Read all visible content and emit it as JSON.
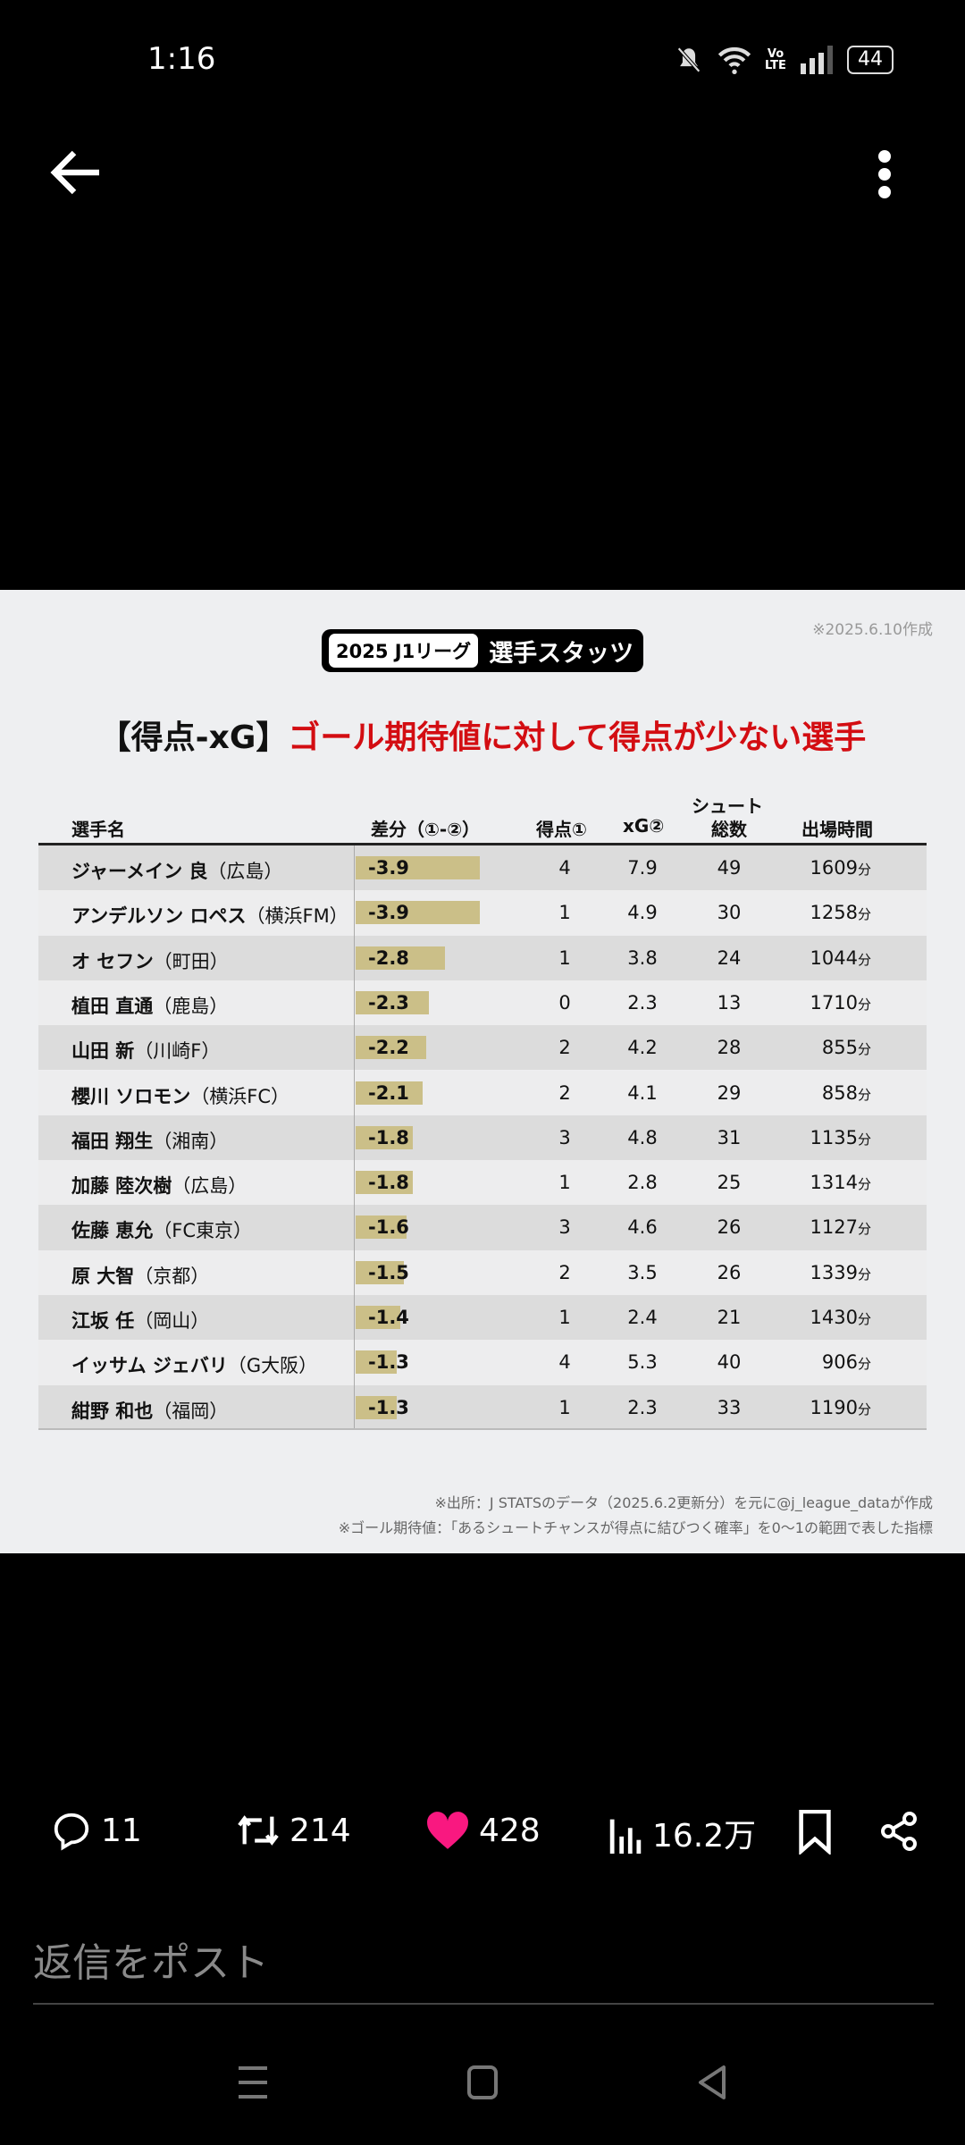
{
  "status_bar": {
    "time": "1:16",
    "battery": "44",
    "network": "Vo LTE"
  },
  "image": {
    "date_note": "※2025.6.10作成",
    "badge_left": "2025 J1リーグ",
    "badge_right": "選手スタッツ",
    "title_black": "【得点-xG】",
    "title_red": "ゴール期待値に対して得点が少ない選手",
    "headers": {
      "name": "選手名",
      "diff": "差分（①-②）",
      "goals": "得点①",
      "xg": "xG②",
      "shots_1": "シュート",
      "shots_2": "総数",
      "minutes": "出場時間"
    },
    "minute_unit": "分",
    "rows": [
      {
        "name": "ジャーメイン 良",
        "team": "（広島）",
        "diff": -3.9,
        "diff_label": "-3.9",
        "goals": "4",
        "xg": "7.9",
        "shots": "49",
        "minutes": "1609"
      },
      {
        "name": "アンデルソン ロペス",
        "team": "（横浜FM）",
        "diff": -3.9,
        "diff_label": "-3.9",
        "goals": "1",
        "xg": "4.9",
        "shots": "30",
        "minutes": "1258"
      },
      {
        "name": "オ セフン",
        "team": "（町田）",
        "diff": -2.8,
        "diff_label": "-2.8",
        "goals": "1",
        "xg": "3.8",
        "shots": "24",
        "minutes": "1044"
      },
      {
        "name": "植田 直通",
        "team": "（鹿島）",
        "diff": -2.3,
        "diff_label": "-2.3",
        "goals": "0",
        "xg": "2.3",
        "shots": "13",
        "minutes": "1710"
      },
      {
        "name": "山田 新",
        "team": "（川崎F）",
        "diff": -2.2,
        "diff_label": "-2.2",
        "goals": "2",
        "xg": "4.2",
        "shots": "28",
        "minutes": "855"
      },
      {
        "name": "櫻川 ソロモン",
        "team": "（横浜FC）",
        "diff": -2.1,
        "diff_label": "-2.1",
        "goals": "2",
        "xg": "4.1",
        "shots": "29",
        "minutes": "858"
      },
      {
        "name": "福田 翔生",
        "team": "（湘南）",
        "diff": -1.8,
        "diff_label": "-1.8",
        "goals": "3",
        "xg": "4.8",
        "shots": "31",
        "minutes": "1135"
      },
      {
        "name": "加藤 陸次樹",
        "team": "（広島）",
        "diff": -1.8,
        "diff_label": "-1.8",
        "goals": "1",
        "xg": "2.8",
        "shots": "25",
        "minutes": "1314"
      },
      {
        "name": "佐藤 恵允",
        "team": "（FC東京）",
        "diff": -1.6,
        "diff_label": "-1.6",
        "goals": "3",
        "xg": "4.6",
        "shots": "26",
        "minutes": "1127"
      },
      {
        "name": "原 大智",
        "team": "（京都）",
        "diff": -1.5,
        "diff_label": "-1.5",
        "goals": "2",
        "xg": "3.5",
        "shots": "26",
        "minutes": "1339"
      },
      {
        "name": "江坂 任",
        "team": "（岡山）",
        "diff": -1.4,
        "diff_label": "-1.4",
        "goals": "1",
        "xg": "2.4",
        "shots": "21",
        "minutes": "1430"
      },
      {
        "name": "イッサム ジェバリ",
        "team": "（G大阪）",
        "diff": -1.3,
        "diff_label": "-1.3",
        "goals": "4",
        "xg": "5.3",
        "shots": "40",
        "minutes": "906"
      },
      {
        "name": "紺野 和也",
        "team": "（福岡）",
        "diff": -1.3,
        "diff_label": "-1.3",
        "goals": "1",
        "xg": "2.3",
        "shots": "33",
        "minutes": "1190"
      }
    ],
    "note_source": "※出所：J STATSのデータ（2025.6.2更新分）を元に@j_league_dataが作成",
    "note_xg": "※ゴール期待値：「あるシュートチャンスが得点に結びつく確率」を0〜1の範囲で表した指標"
  },
  "actions": {
    "replies": "11",
    "reposts": "214",
    "likes": "428",
    "views": "16.2万",
    "like_color": "#f91880"
  },
  "reply_placeholder": "返信をポスト"
}
